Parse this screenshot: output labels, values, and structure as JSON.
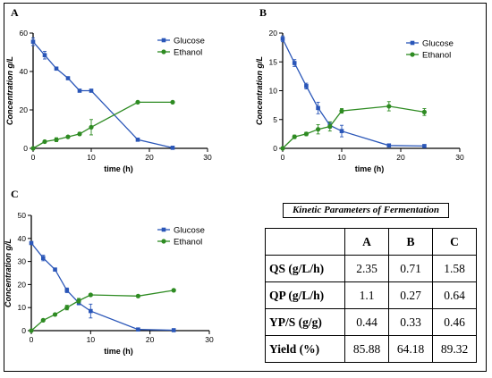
{
  "chart_data": [
    {
      "panel": "A",
      "type": "line",
      "xlabel": "time (h)",
      "ylabel": "Concentration g/L",
      "xlim": [
        0,
        30
      ],
      "ylim": [
        0,
        60
      ],
      "xticks": [
        0,
        10,
        20,
        30
      ],
      "yticks": [
        0,
        20,
        40,
        60
      ],
      "legend_position": "top-right",
      "series": [
        {
          "name": "Glucose",
          "color": "#2a56b8",
          "marker": "square",
          "x": [
            0,
            2,
            4,
            6,
            8,
            10,
            18,
            24
          ],
          "y": [
            55.5,
            48.5,
            41.5,
            36.5,
            30,
            30,
            4.5,
            0.3
          ],
          "err": [
            2,
            2,
            0.5,
            0.5,
            0.5,
            0.5,
            0.5,
            0.3
          ]
        },
        {
          "name": "Ethanol",
          "color": "#2e8b22",
          "marker": "circle",
          "x": [
            0,
            2,
            4,
            6,
            8,
            10,
            18,
            24
          ],
          "y": [
            0,
            3.5,
            4.5,
            6,
            7.5,
            11,
            24,
            24
          ],
          "err": [
            0,
            0.5,
            1,
            0.5,
            0.8,
            4,
            0.5,
            0.5
          ]
        }
      ]
    },
    {
      "panel": "B",
      "type": "line",
      "xlabel": "time (h)",
      "ylabel": "Concentration g/L",
      "xlim": [
        0,
        30
      ],
      "ylim": [
        0,
        20
      ],
      "xticks": [
        0,
        10,
        20,
        30
      ],
      "yticks": [
        0,
        5,
        10,
        15,
        20
      ],
      "legend_position": "top-right",
      "series": [
        {
          "name": "Glucose",
          "color": "#2a56b8",
          "marker": "square",
          "x": [
            0,
            2,
            4,
            6,
            8,
            10,
            18,
            24
          ],
          "y": [
            19,
            14.8,
            10.8,
            7,
            4,
            3,
            0.5,
            0.4
          ],
          "err": [
            0.5,
            0.6,
            0.5,
            1,
            0.5,
            1,
            0.2,
            0.2
          ]
        },
        {
          "name": "Ethanol",
          "color": "#2e8b22",
          "marker": "circle",
          "x": [
            0,
            2,
            4,
            6,
            8,
            10,
            18,
            24
          ],
          "y": [
            0,
            2,
            2.5,
            3.3,
            3.8,
            6.5,
            7.3,
            6.3
          ],
          "err": [
            0,
            0.3,
            0.3,
            0.8,
            0.8,
            0.4,
            0.8,
            0.6
          ]
        }
      ]
    },
    {
      "panel": "C",
      "type": "line",
      "xlabel": "time (h)",
      "ylabel": "Concentration g/L",
      "xlim": [
        0,
        30
      ],
      "ylim": [
        0,
        50
      ],
      "xticks": [
        0,
        10,
        20,
        30
      ],
      "yticks": [
        0,
        10,
        20,
        30,
        40,
        50
      ],
      "legend_position": "top-right",
      "series": [
        {
          "name": "Glucose",
          "color": "#2a56b8",
          "marker": "square",
          "x": [
            0,
            2,
            4,
            6,
            8,
            10,
            18,
            24
          ],
          "y": [
            38,
            31.5,
            26.5,
            17.5,
            12,
            8.5,
            0.5,
            0.2
          ],
          "err": [
            0.5,
            1.2,
            0.5,
            1,
            0.8,
            3,
            0.3,
            0.2
          ]
        },
        {
          "name": "Ethanol",
          "color": "#2e8b22",
          "marker": "circle",
          "x": [
            0,
            2,
            4,
            6,
            8,
            10,
            18,
            24
          ],
          "y": [
            0,
            4.5,
            7,
            10,
            13,
            15.5,
            15,
            17.5
          ],
          "err": [
            0,
            0.4,
            0.5,
            1,
            1,
            0.5,
            0.5,
            0.5
          ]
        }
      ]
    }
  ],
  "kinetic_table": {
    "title": "Kinetic Parameters of Fermentation",
    "columns": [
      "",
      "A",
      "B",
      "C"
    ],
    "rows": [
      {
        "label": "QS (g/L/h)",
        "values": [
          "2.35",
          "0.71",
          "1.58"
        ]
      },
      {
        "label": "QP (g/L/h)",
        "values": [
          "1.1",
          "0.27",
          "0.64"
        ]
      },
      {
        "label": "YP/S (g/g)",
        "values": [
          "0.44",
          "0.33",
          "0.46"
        ]
      },
      {
        "label": "Yield (%)",
        "values": [
          "85.88",
          "64.18",
          "89.32"
        ]
      }
    ]
  }
}
